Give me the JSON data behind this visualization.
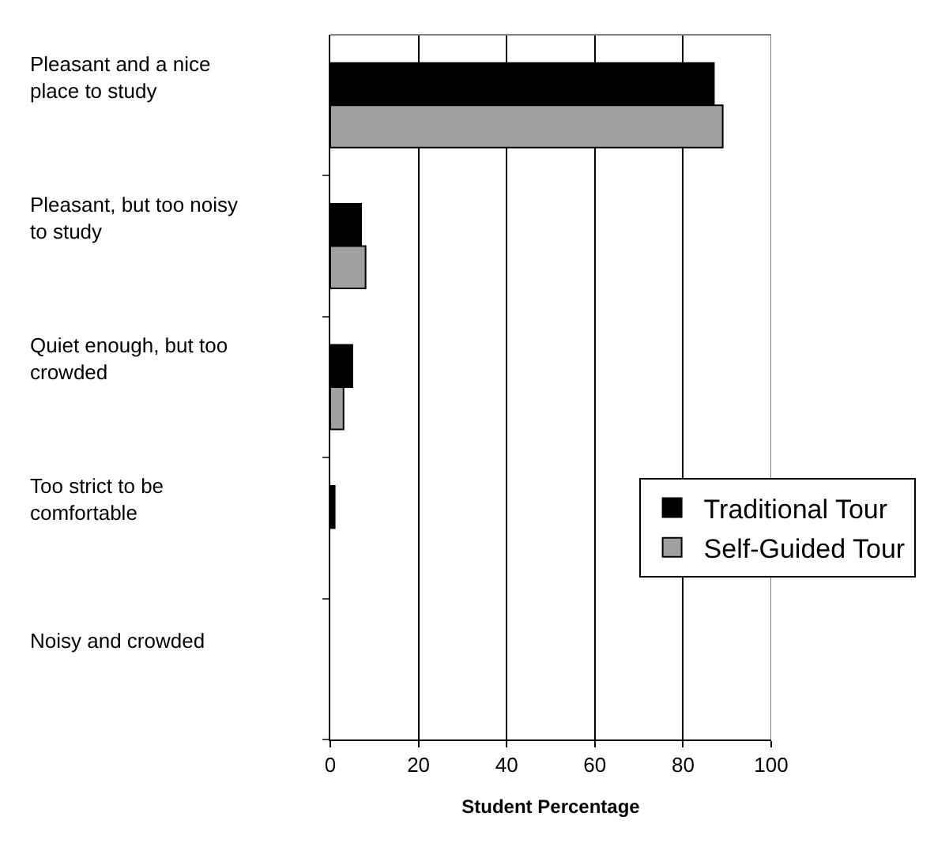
{
  "chart_data": {
    "type": "bar",
    "orientation": "horizontal",
    "xlabel": "Student Percentage",
    "categories": [
      "Pleasant and a nice place to study",
      "Pleasant, but too noisy to study",
      "Quiet enough, but too crowded",
      "Too strict to be comfortable",
      "Noisy and crowded"
    ],
    "series": [
      {
        "name": "Traditional Tour",
        "color": "#000000",
        "values": [
          87,
          7,
          5,
          1,
          0
        ]
      },
      {
        "name": "Self-Guided Tour",
        "color": "#a0a0a0",
        "values": [
          89,
          8,
          3,
          0,
          0
        ]
      }
    ],
    "xlim": [
      0,
      100
    ],
    "xticks": [
      0,
      20,
      40,
      60,
      80,
      100
    ],
    "grid": "x",
    "legend": "right"
  }
}
